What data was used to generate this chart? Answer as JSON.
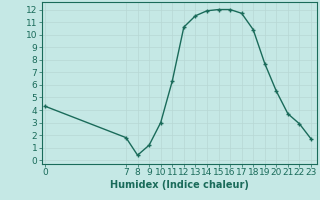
{
  "x": [
    0,
    7,
    8,
    9,
    10,
    11,
    12,
    13,
    14,
    15,
    16,
    17,
    18,
    19,
    20,
    21,
    22,
    23
  ],
  "y": [
    4.3,
    1.8,
    0.4,
    1.2,
    3.0,
    6.3,
    10.6,
    11.5,
    11.9,
    12.0,
    12.0,
    11.7,
    10.4,
    7.7,
    5.5,
    3.7,
    2.9,
    1.7
  ],
  "line_color": "#1a6b5a",
  "marker": "+",
  "bg_color": "#c5e8e5",
  "grid_color": "#b8d8d4",
  "xlabel": "Humidex (Indice chaleur)",
  "xticks": [
    0,
    7,
    8,
    9,
    10,
    11,
    12,
    13,
    14,
    15,
    16,
    17,
    18,
    19,
    20,
    21,
    22,
    23
  ],
  "yticks": [
    0,
    1,
    2,
    3,
    4,
    5,
    6,
    7,
    8,
    9,
    10,
    11,
    12
  ],
  "xlim": [
    -0.3,
    23.5
  ],
  "ylim": [
    -0.3,
    12.6
  ],
  "tick_color": "#1a6b5a",
  "label_color": "#1a6b5a",
  "xlabel_fontsize": 7,
  "tick_fontsize": 6.5,
  "markersize": 3,
  "linewidth": 1.0
}
